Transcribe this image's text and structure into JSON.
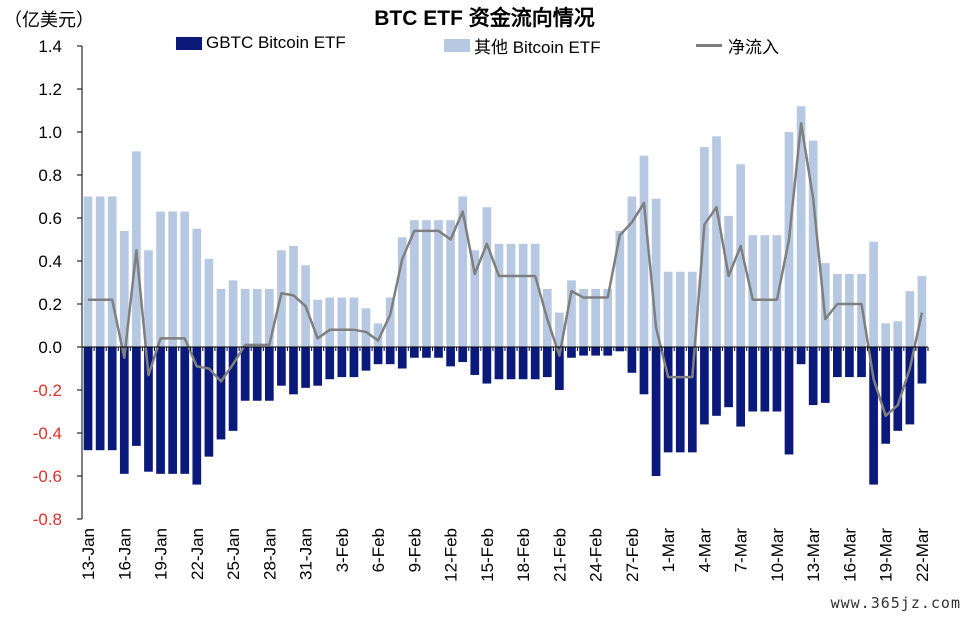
{
  "unit_label": "（亿美元）",
  "watermark": "www.365jz.com",
  "colors": {
    "gbtc": "#0b1a7a",
    "other": "#b7c9e2",
    "net": "#7f7f7f",
    "positive_tick": "#000000",
    "negative_tick": "#e0302a"
  },
  "chart_data": {
    "type": "bar",
    "title": "BTC ETF 资金流向情况",
    "xlabel": "",
    "ylabel": "",
    "ylim": [
      -0.8,
      1.4
    ],
    "yticks": [
      "1.4",
      "1.2",
      "1.0",
      "0.8",
      "0.6",
      "0.4",
      "0.2",
      "0.0",
      "-0.2",
      "-0.4",
      "-0.6",
      "-0.8"
    ],
    "ytick_values": [
      1.4,
      1.2,
      1.0,
      0.8,
      0.6,
      0.4,
      0.2,
      0.0,
      -0.2,
      -0.4,
      -0.6,
      -0.8
    ],
    "x_tick_labels": [
      "13-Jan",
      "16-Jan",
      "19-Jan",
      "22-Jan",
      "25-Jan",
      "28-Jan",
      "31-Jan",
      "3-Feb",
      "6-Feb",
      "9-Feb",
      "12-Feb",
      "15-Feb",
      "18-Feb",
      "21-Feb",
      "24-Feb",
      "27-Feb",
      "1-Mar",
      "4-Mar",
      "7-Mar",
      "10-Mar",
      "13-Mar",
      "16-Mar",
      "19-Mar",
      "22-Mar"
    ],
    "legend_position": "top",
    "grid": false,
    "series": [
      {
        "name": "GBTC Bitcoin ETF",
        "kind": "bar",
        "values": [
          -0.48,
          -0.48,
          -0.48,
          -0.59,
          -0.46,
          -0.58,
          -0.59,
          -0.59,
          -0.59,
          -0.64,
          -0.51,
          -0.43,
          -0.39,
          -0.25,
          -0.25,
          -0.25,
          -0.18,
          -0.22,
          -0.19,
          -0.18,
          -0.15,
          -0.14,
          -0.14,
          -0.11,
          -0.08,
          -0.08,
          -0.1,
          -0.05,
          -0.05,
          -0.05,
          -0.09,
          -0.07,
          -0.13,
          -0.17,
          -0.15,
          -0.15,
          -0.15,
          -0.15,
          -0.14,
          -0.2,
          -0.05,
          -0.04,
          -0.04,
          -0.04,
          -0.02,
          -0.12,
          -0.22,
          -0.6,
          -0.49,
          -0.49,
          -0.49,
          -0.36,
          -0.32,
          -0.28,
          -0.37,
          -0.3,
          -0.3,
          -0.3,
          -0.5,
          -0.08,
          -0.27,
          -0.26,
          -0.14,
          -0.14,
          -0.14,
          -0.64,
          -0.45,
          -0.39,
          -0.36,
          -0.17
        ]
      },
      {
        "name": "其他 Bitcoin ETF",
        "kind": "bar",
        "values": [
          0.7,
          0.7,
          0.7,
          0.54,
          0.91,
          0.45,
          0.63,
          0.63,
          0.63,
          0.55,
          0.41,
          0.27,
          0.31,
          0.27,
          0.27,
          0.27,
          0.45,
          0.47,
          0.38,
          0.22,
          0.23,
          0.23,
          0.23,
          0.18,
          0.11,
          0.23,
          0.51,
          0.59,
          0.59,
          0.59,
          0.59,
          0.7,
          0.45,
          0.65,
          0.48,
          0.48,
          0.48,
          0.48,
          0.27,
          0.16,
          0.31,
          0.27,
          0.27,
          0.27,
          0.54,
          0.7,
          0.89,
          0.69,
          0.35,
          0.35,
          0.35,
          0.93,
          0.98,
          0.61,
          0.85,
          0.52,
          0.52,
          0.52,
          1.0,
          1.12,
          0.96,
          0.39,
          0.34,
          0.34,
          0.34,
          0.49,
          0.11,
          0.12,
          0.26,
          0.33
        ]
      },
      {
        "name": "净流入",
        "kind": "line",
        "values": [
          0.22,
          0.22,
          0.22,
          -0.05,
          0.45,
          -0.13,
          0.04,
          0.04,
          0.04,
          -0.09,
          -0.1,
          -0.16,
          -0.08,
          0.01,
          0.01,
          0.01,
          0.25,
          0.24,
          0.19,
          0.04,
          0.08,
          0.08,
          0.08,
          0.07,
          0.03,
          0.15,
          0.41,
          0.54,
          0.54,
          0.54,
          0.5,
          0.63,
          0.34,
          0.48,
          0.33,
          0.33,
          0.33,
          0.33,
          0.13,
          -0.04,
          0.26,
          0.23,
          0.23,
          0.23,
          0.52,
          0.58,
          0.67,
          0.09,
          -0.14,
          -0.14,
          -0.14,
          0.57,
          0.65,
          0.33,
          0.47,
          0.22,
          0.22,
          0.22,
          0.5,
          1.04,
          0.69,
          0.13,
          0.2,
          0.2,
          0.2,
          -0.15,
          -0.32,
          -0.27,
          -0.1,
          0.16
        ]
      }
    ]
  }
}
